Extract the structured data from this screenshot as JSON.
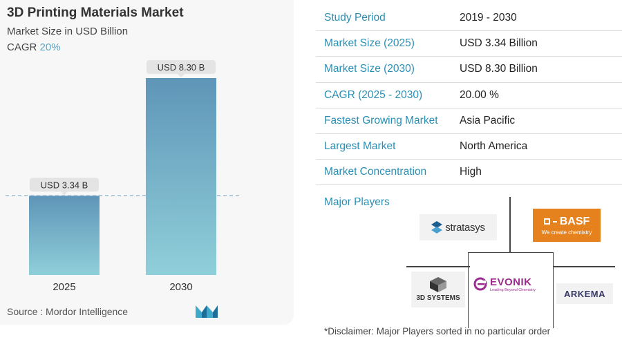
{
  "chart_data": {
    "type": "bar",
    "title": "3D Printing Materials Market",
    "subtitle": "Market Size in USD Billion",
    "cagr_label": "CAGR",
    "cagr_value": "20%",
    "categories": [
      "2025",
      "2030"
    ],
    "values": [
      3.34,
      8.3
    ],
    "data_labels": [
      "USD 3.34 B",
      "USD 8.30 B"
    ],
    "ylim": [
      0,
      8.3
    ],
    "grid": false,
    "reference_line_at": 3.34,
    "colors": {
      "bar_top": "#5f95b8",
      "bar_bottom": "#8fcfd9",
      "label_bg": "#e4e4e4",
      "ref_line": "#8fb3c9"
    }
  },
  "source": "Source :  Mordor Intelligence",
  "summary": [
    {
      "key": "Study Period",
      "value": "2019 - 2030"
    },
    {
      "key": "Market Size (2025)",
      "value": "USD 3.34 Billion"
    },
    {
      "key": "Market Size (2030)",
      "value": "USD 8.30 Billion"
    },
    {
      "key": "CAGR (2025 - 2030)",
      "value": "20.00 %"
    },
    {
      "key": "Fastest Growing Market",
      "value": "Asia Pacific"
    },
    {
      "key": "Largest Market",
      "value": "North America"
    },
    {
      "key": "Market Concentration",
      "value": "High"
    }
  ],
  "players_label": "Major Players",
  "players": {
    "stratasys": "stratasys",
    "basf": "BASF",
    "basf_tagline": "We create chemistry",
    "systems": "3D SYSTEMS",
    "evonik": "EVONIK",
    "evonik_tagline": "Leading Beyond Chemistry",
    "arkema": "ARKEMA"
  },
  "disclaimer": "*Disclaimer: Major Players sorted in no particular order"
}
